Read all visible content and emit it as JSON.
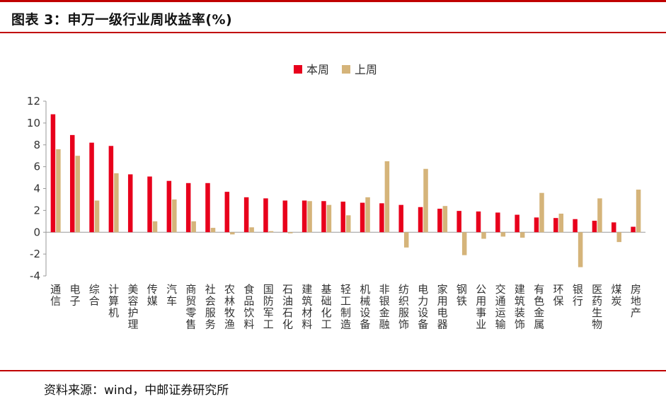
{
  "header": {
    "title": "图表 3：申万一级行业周收益率(%)"
  },
  "footer": {
    "source": "资料来源：wind，中邮证券研究所"
  },
  "colors": {
    "accent_rule": "#c00000",
    "series_this_week": "#e8001c",
    "series_last_week": "#d5b47a"
  },
  "chart_data": {
    "type": "bar",
    "title": "",
    "xlabel": "",
    "ylabel": "",
    "ylim": [
      -4,
      12
    ],
    "yticks": [
      -4,
      -2,
      0,
      2,
      4,
      6,
      8,
      10,
      12
    ],
    "grid": false,
    "legend_position": "top-center",
    "categories": [
      "通信",
      "电子",
      "综合",
      "计算机",
      "美容护理",
      "传媒",
      "汽车",
      "商贸零售",
      "社会服务",
      "农林牧渔",
      "食品饮料",
      "国防军工",
      "石油石化",
      "建筑材料",
      "基础化工",
      "轻工制造",
      "机械设备",
      "非银金融",
      "纺织服饰",
      "电力设备",
      "家用电器",
      "钢铁",
      "公用事业",
      "交通运输",
      "建筑装饰",
      "有色金属",
      "环保",
      "银行",
      "医药生物",
      "煤炭",
      "房地产"
    ],
    "series": [
      {
        "name": "本周",
        "color": "#e8001c",
        "values": [
          10.8,
          8.9,
          8.2,
          7.9,
          5.3,
          5.1,
          4.7,
          4.5,
          4.5,
          3.7,
          3.2,
          3.1,
          2.9,
          2.9,
          2.85,
          2.8,
          2.7,
          2.65,
          2.5,
          2.3,
          2.15,
          1.95,
          1.9,
          1.8,
          1.6,
          1.35,
          1.3,
          1.2,
          1.05,
          0.9,
          0.5
        ]
      },
      {
        "name": "上周",
        "color": "#d5b47a",
        "values": [
          7.6,
          7.0,
          2.9,
          5.4,
          0.0,
          1.0,
          3.0,
          1.0,
          0.4,
          -0.2,
          0.45,
          0.1,
          -0.1,
          2.85,
          2.5,
          1.55,
          3.2,
          6.5,
          -1.4,
          5.8,
          2.4,
          -2.1,
          -0.6,
          -0.4,
          -0.5,
          3.6,
          1.7,
          -3.2,
          3.1,
          -0.9,
          3.9
        ]
      }
    ]
  }
}
